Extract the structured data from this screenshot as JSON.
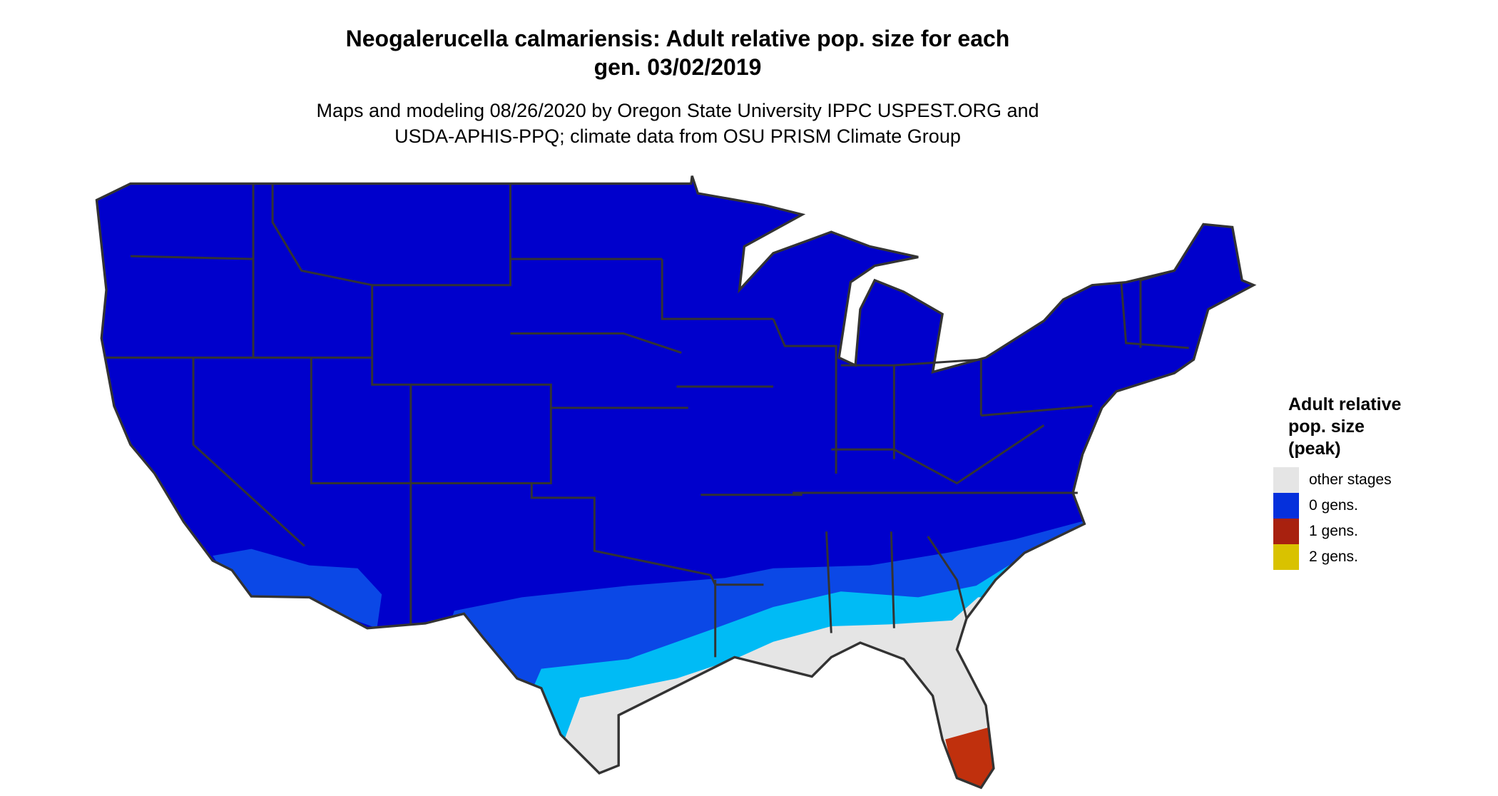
{
  "title": {
    "line1": "Neogalerucella calmariensis: Adult relative pop. size for each",
    "line2": "gen. 03/02/2019"
  },
  "subtitle": {
    "line1": "Maps and modeling 08/26/2020 by Oregon State University IPPC USPEST.ORG and",
    "line2": "USDA-APHIS-PPQ; climate data from OSU PRISM Climate Group"
  },
  "legend": {
    "title_lines": [
      "Adult relative",
      "pop. size",
      "(peak)"
    ],
    "items": [
      {
        "label": "other stages",
        "color": "#E5E5E5"
      },
      {
        "label": "0 gens.",
        "color": "#0530DC"
      },
      {
        "label": "1 gens.",
        "color": "#A8210F"
      },
      {
        "label": "2 gens.",
        "color": "#D9C200"
      }
    ]
  },
  "map_colors": {
    "deep_blue": "#0000CC",
    "mid_blue": "#0B48E6",
    "cyan": "#00BBF5",
    "light_gray": "#E5E5E5",
    "red": "#C0300D",
    "borders": "#333333"
  }
}
